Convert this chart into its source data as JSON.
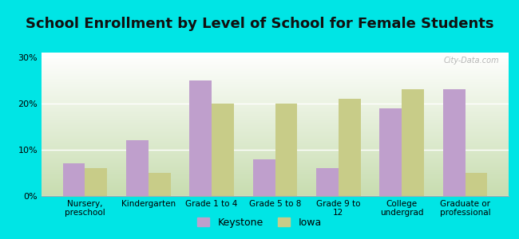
{
  "title": "School Enrollment by Level of School for Female Students",
  "categories": [
    "Nursery,\npreschool",
    "Kindergarten",
    "Grade 1 to 4",
    "Grade 5 to 8",
    "Grade 9 to\n12",
    "College\nundergrad",
    "Graduate or\nprofessional"
  ],
  "keystone_values": [
    7.0,
    12.0,
    25.0,
    8.0,
    6.0,
    19.0,
    23.0
  ],
  "iowa_values": [
    6.0,
    5.0,
    20.0,
    20.0,
    21.0,
    23.0,
    5.0
  ],
  "keystone_color": "#bf9fcc",
  "iowa_color": "#c8cc88",
  "background_outer": "#00e5e5",
  "background_inner_top": "#ffffff",
  "background_inner_bottom": "#c8ddb0",
  "yticks": [
    0,
    10,
    20,
    30
  ],
  "ylim": [
    0,
    31
  ],
  "bar_width": 0.35,
  "legend_labels": [
    "Keystone",
    "Iowa"
  ],
  "title_fontsize": 13,
  "watermark": "City-Data.com"
}
